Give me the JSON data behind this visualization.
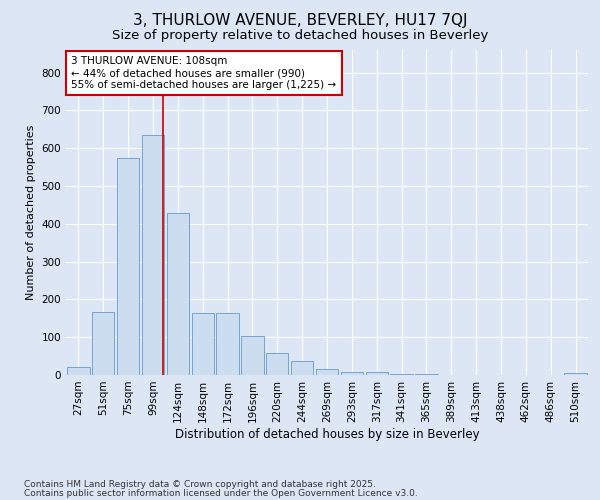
{
  "title": "3, THURLOW AVENUE, BEVERLEY, HU17 7QJ",
  "subtitle": "Size of property relative to detached houses in Beverley",
  "xlabel": "Distribution of detached houses by size in Beverley",
  "ylabel": "Number of detached properties",
  "categories": [
    "27sqm",
    "51sqm",
    "75sqm",
    "99sqm",
    "124sqm",
    "148sqm",
    "172sqm",
    "196sqm",
    "220sqm",
    "244sqm",
    "269sqm",
    "293sqm",
    "317sqm",
    "341sqm",
    "365sqm",
    "389sqm",
    "413sqm",
    "438sqm",
    "462sqm",
    "486sqm",
    "510sqm"
  ],
  "values": [
    20,
    167,
    575,
    635,
    430,
    165,
    165,
    103,
    57,
    38,
    17,
    9,
    8,
    3,
    3,
    1,
    0,
    0,
    0,
    0,
    5
  ],
  "bar_color": "#ccddf0",
  "bar_edge_color": "#6699cc",
  "vline_x_index": 3.42,
  "vline_color": "#cc0000",
  "annotation_text": "3 THURLOW AVENUE: 108sqm\n← 44% of detached houses are smaller (990)\n55% of semi-detached houses are larger (1,225) →",
  "annotation_box_color": "#ffffff",
  "annotation_box_edge": "#cc0000",
  "ylim": [
    0,
    860
  ],
  "yticks": [
    0,
    100,
    200,
    300,
    400,
    500,
    600,
    700,
    800
  ],
  "background_color": "#dce6f5",
  "plot_background": "#dce6f5",
  "footer_line1": "Contains HM Land Registry data © Crown copyright and database right 2025.",
  "footer_line2": "Contains public sector information licensed under the Open Government Licence v3.0.",
  "title_fontsize": 11,
  "subtitle_fontsize": 9.5,
  "xlabel_fontsize": 8.5,
  "ylabel_fontsize": 8,
  "tick_fontsize": 7.5,
  "footer_fontsize": 6.5
}
